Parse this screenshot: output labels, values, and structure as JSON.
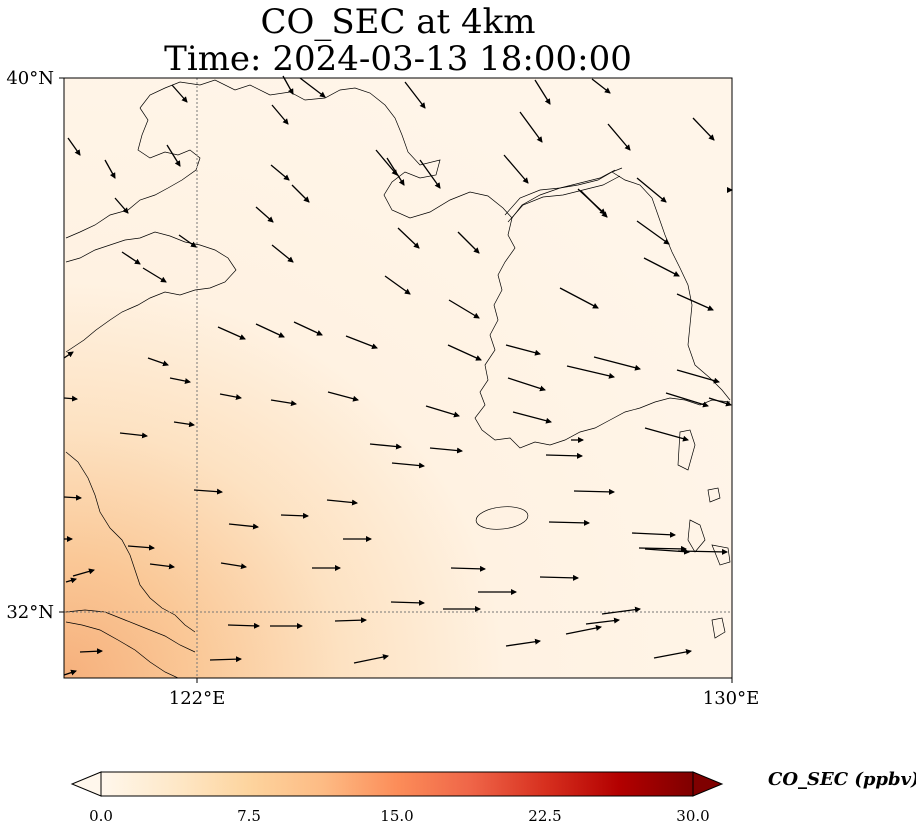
{
  "title": {
    "line1": "CO_SEC at 4km",
    "line2": "Time: 2024-03-13 18:00:00"
  },
  "axes": {
    "lat_ticks": [
      "40°N",
      "32°N"
    ],
    "lon_ticks": [
      "122°E",
      "130°E"
    ]
  },
  "colorbar": {
    "label": "CO_SEC (ppbv)",
    "ticks": [
      "0.0",
      "7.5",
      "15.0",
      "22.5",
      "30.0"
    ],
    "range": [
      0,
      30
    ],
    "colormap": "OrRd",
    "colors": [
      "#fff7ec",
      "#fee8c8",
      "#fdd49e",
      "#fdbb84",
      "#fc8d59",
      "#ef6548",
      "#d7301f",
      "#b30000",
      "#7f0000"
    ]
  },
  "colors": {
    "background": "#fff4e6",
    "coastline": "#000000",
    "gridline": "#777777",
    "vector": "#000000"
  }
}
